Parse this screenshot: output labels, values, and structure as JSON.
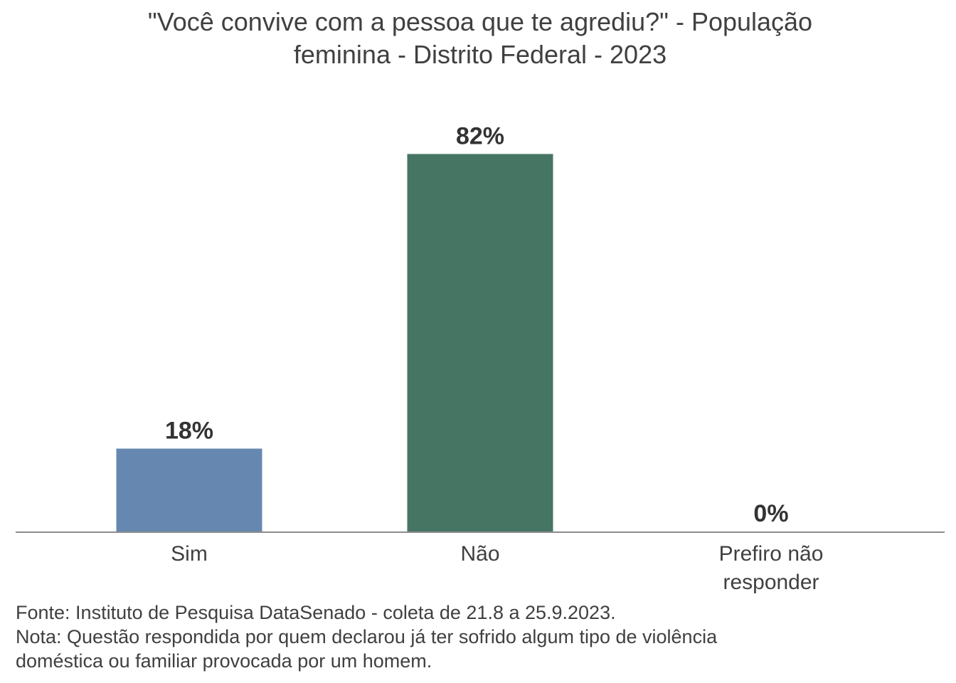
{
  "chart_data": {
    "type": "bar",
    "title_lines": [
      "\"Você convive com a pessoa que te agrediu?\" - População",
      "feminina - Distrito Federal - 2023"
    ],
    "categories": [
      [
        "Sim"
      ],
      [
        "Não"
      ],
      [
        "Prefiro não",
        "responder"
      ]
    ],
    "values": [
      18,
      82,
      0
    ],
    "data_labels": [
      "18%",
      "82%",
      "0%"
    ],
    "colors": [
      "#6688b0",
      "#467563",
      "#467563"
    ],
    "ylim": [
      0,
      100
    ],
    "grid": false,
    "legend": "none"
  },
  "footer": {
    "source": "Fonte: Instituto de Pesquisa DataSenado - coleta de 21.8 a 25.9.2023.",
    "note_line1": "Nota: Questão respondida por quem declarou já ter sofrido algum tipo de violência",
    "note_line2": "doméstica ou familiar provocada por um homem."
  }
}
